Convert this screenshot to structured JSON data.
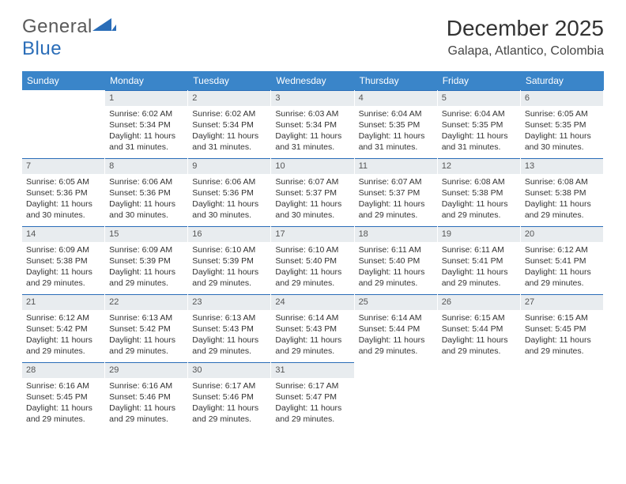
{
  "brand": {
    "name_a": "General",
    "name_b": "Blue"
  },
  "title": "December 2025",
  "location": "Galapa, Atlantico, Colombia",
  "colors": {
    "header_bg": "#3a85c9",
    "header_text": "#ffffff",
    "daynum_bg": "#e8ecef",
    "daynum_border": "#2a6db8",
    "brand_gray": "#5a5a5a",
    "brand_blue": "#2a6db8"
  },
  "day_names": [
    "Sunday",
    "Monday",
    "Tuesday",
    "Wednesday",
    "Thursday",
    "Friday",
    "Saturday"
  ],
  "weeks": [
    [
      {
        "day": "",
        "sunrise": "",
        "sunset": "",
        "daylight": ""
      },
      {
        "day": "1",
        "sunrise": "Sunrise: 6:02 AM",
        "sunset": "Sunset: 5:34 PM",
        "daylight": "Daylight: 11 hours and 31 minutes."
      },
      {
        "day": "2",
        "sunrise": "Sunrise: 6:02 AM",
        "sunset": "Sunset: 5:34 PM",
        "daylight": "Daylight: 11 hours and 31 minutes."
      },
      {
        "day": "3",
        "sunrise": "Sunrise: 6:03 AM",
        "sunset": "Sunset: 5:34 PM",
        "daylight": "Daylight: 11 hours and 31 minutes."
      },
      {
        "day": "4",
        "sunrise": "Sunrise: 6:04 AM",
        "sunset": "Sunset: 5:35 PM",
        "daylight": "Daylight: 11 hours and 31 minutes."
      },
      {
        "day": "5",
        "sunrise": "Sunrise: 6:04 AM",
        "sunset": "Sunset: 5:35 PM",
        "daylight": "Daylight: 11 hours and 31 minutes."
      },
      {
        "day": "6",
        "sunrise": "Sunrise: 6:05 AM",
        "sunset": "Sunset: 5:35 PM",
        "daylight": "Daylight: 11 hours and 30 minutes."
      }
    ],
    [
      {
        "day": "7",
        "sunrise": "Sunrise: 6:05 AM",
        "sunset": "Sunset: 5:36 PM",
        "daylight": "Daylight: 11 hours and 30 minutes."
      },
      {
        "day": "8",
        "sunrise": "Sunrise: 6:06 AM",
        "sunset": "Sunset: 5:36 PM",
        "daylight": "Daylight: 11 hours and 30 minutes."
      },
      {
        "day": "9",
        "sunrise": "Sunrise: 6:06 AM",
        "sunset": "Sunset: 5:36 PM",
        "daylight": "Daylight: 11 hours and 30 minutes."
      },
      {
        "day": "10",
        "sunrise": "Sunrise: 6:07 AM",
        "sunset": "Sunset: 5:37 PM",
        "daylight": "Daylight: 11 hours and 30 minutes."
      },
      {
        "day": "11",
        "sunrise": "Sunrise: 6:07 AM",
        "sunset": "Sunset: 5:37 PM",
        "daylight": "Daylight: 11 hours and 29 minutes."
      },
      {
        "day": "12",
        "sunrise": "Sunrise: 6:08 AM",
        "sunset": "Sunset: 5:38 PM",
        "daylight": "Daylight: 11 hours and 29 minutes."
      },
      {
        "day": "13",
        "sunrise": "Sunrise: 6:08 AM",
        "sunset": "Sunset: 5:38 PM",
        "daylight": "Daylight: 11 hours and 29 minutes."
      }
    ],
    [
      {
        "day": "14",
        "sunrise": "Sunrise: 6:09 AM",
        "sunset": "Sunset: 5:38 PM",
        "daylight": "Daylight: 11 hours and 29 minutes."
      },
      {
        "day": "15",
        "sunrise": "Sunrise: 6:09 AM",
        "sunset": "Sunset: 5:39 PM",
        "daylight": "Daylight: 11 hours and 29 minutes."
      },
      {
        "day": "16",
        "sunrise": "Sunrise: 6:10 AM",
        "sunset": "Sunset: 5:39 PM",
        "daylight": "Daylight: 11 hours and 29 minutes."
      },
      {
        "day": "17",
        "sunrise": "Sunrise: 6:10 AM",
        "sunset": "Sunset: 5:40 PM",
        "daylight": "Daylight: 11 hours and 29 minutes."
      },
      {
        "day": "18",
        "sunrise": "Sunrise: 6:11 AM",
        "sunset": "Sunset: 5:40 PM",
        "daylight": "Daylight: 11 hours and 29 minutes."
      },
      {
        "day": "19",
        "sunrise": "Sunrise: 6:11 AM",
        "sunset": "Sunset: 5:41 PM",
        "daylight": "Daylight: 11 hours and 29 minutes."
      },
      {
        "day": "20",
        "sunrise": "Sunrise: 6:12 AM",
        "sunset": "Sunset: 5:41 PM",
        "daylight": "Daylight: 11 hours and 29 minutes."
      }
    ],
    [
      {
        "day": "21",
        "sunrise": "Sunrise: 6:12 AM",
        "sunset": "Sunset: 5:42 PM",
        "daylight": "Daylight: 11 hours and 29 minutes."
      },
      {
        "day": "22",
        "sunrise": "Sunrise: 6:13 AM",
        "sunset": "Sunset: 5:42 PM",
        "daylight": "Daylight: 11 hours and 29 minutes."
      },
      {
        "day": "23",
        "sunrise": "Sunrise: 6:13 AM",
        "sunset": "Sunset: 5:43 PM",
        "daylight": "Daylight: 11 hours and 29 minutes."
      },
      {
        "day": "24",
        "sunrise": "Sunrise: 6:14 AM",
        "sunset": "Sunset: 5:43 PM",
        "daylight": "Daylight: 11 hours and 29 minutes."
      },
      {
        "day": "25",
        "sunrise": "Sunrise: 6:14 AM",
        "sunset": "Sunset: 5:44 PM",
        "daylight": "Daylight: 11 hours and 29 minutes."
      },
      {
        "day": "26",
        "sunrise": "Sunrise: 6:15 AM",
        "sunset": "Sunset: 5:44 PM",
        "daylight": "Daylight: 11 hours and 29 minutes."
      },
      {
        "day": "27",
        "sunrise": "Sunrise: 6:15 AM",
        "sunset": "Sunset: 5:45 PM",
        "daylight": "Daylight: 11 hours and 29 minutes."
      }
    ],
    [
      {
        "day": "28",
        "sunrise": "Sunrise: 6:16 AM",
        "sunset": "Sunset: 5:45 PM",
        "daylight": "Daylight: 11 hours and 29 minutes."
      },
      {
        "day": "29",
        "sunrise": "Sunrise: 6:16 AM",
        "sunset": "Sunset: 5:46 PM",
        "daylight": "Daylight: 11 hours and 29 minutes."
      },
      {
        "day": "30",
        "sunrise": "Sunrise: 6:17 AM",
        "sunset": "Sunset: 5:46 PM",
        "daylight": "Daylight: 11 hours and 29 minutes."
      },
      {
        "day": "31",
        "sunrise": "Sunrise: 6:17 AM",
        "sunset": "Sunset: 5:47 PM",
        "daylight": "Daylight: 11 hours and 29 minutes."
      },
      {
        "day": "",
        "sunrise": "",
        "sunset": "",
        "daylight": ""
      },
      {
        "day": "",
        "sunrise": "",
        "sunset": "",
        "daylight": ""
      },
      {
        "day": "",
        "sunrise": "",
        "sunset": "",
        "daylight": ""
      }
    ]
  ]
}
